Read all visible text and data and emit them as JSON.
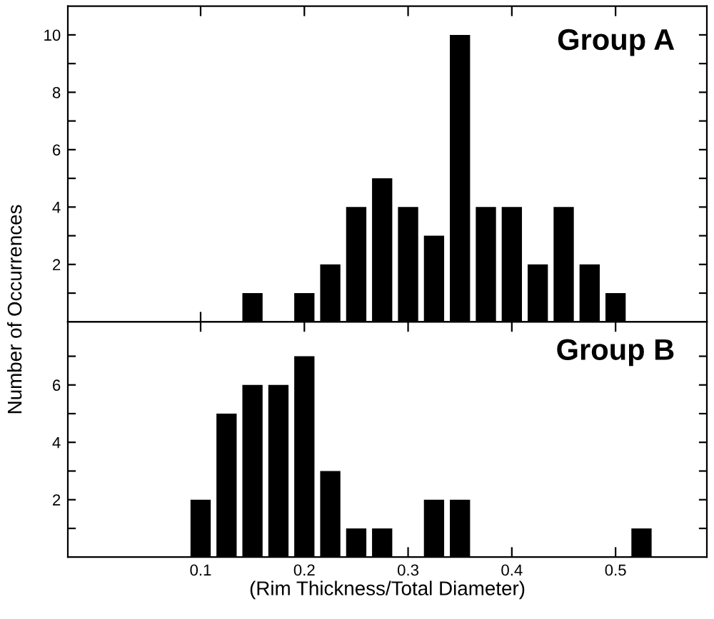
{
  "chart_data": [
    {
      "type": "histogram",
      "ylabel": "Number of Occurrences",
      "annotations": [
        "Group A"
      ],
      "bins": [
        0.1375,
        0.1625,
        0.1875,
        0.2125,
        0.2375,
        0.2625,
        0.2875,
        0.3125,
        0.3375,
        0.3625,
        0.3875,
        0.4125,
        0.4375,
        0.4625,
        0.4875,
        0.5125
      ],
      "values": [
        1,
        0,
        1,
        2,
        4,
        5,
        4,
        3,
        10,
        4,
        4,
        2,
        4,
        2,
        1
      ],
      "color": "#000000",
      "xlim": [
        -0.028,
        0.588
      ],
      "xticks": [
        0.1,
        0.2,
        0.3,
        0.4,
        0.5
      ],
      "ylim": [
        0,
        11
      ],
      "yticks": [
        {
          "value": 1,
          "label": null
        },
        2,
        {
          "value": 3,
          "label": null
        },
        4,
        {
          "value": 5,
          "label": null
        },
        6,
        {
          "value": 7,
          "label": null
        },
        8,
        {
          "value": 9,
          "label": null
        },
        10
      ],
      "tick_labels": "y",
      "grid": false,
      "legend": false
    },
    {
      "type": "histogram",
      "xlabel": "(Rim Thickness/Total Diameter)",
      "annotations": [
        "Group B"
      ],
      "bins": [
        0.0875,
        0.1125,
        0.1375,
        0.1625,
        0.1875,
        0.2125,
        0.2375,
        0.2625,
        0.2875,
        0.3125,
        0.3375,
        0.3625,
        0.3875,
        0.4125,
        0.4375,
        0.4625,
        0.4875,
        0.5125,
        0.5375
      ],
      "values": [
        2,
        5,
        6,
        6,
        7,
        3,
        1,
        1,
        0,
        2,
        2,
        0,
        0,
        0,
        0,
        0,
        0,
        1
      ],
      "color": "#000000",
      "xlim": [
        -0.028,
        0.588
      ],
      "xticks": [
        0.1,
        0.2,
        0.3,
        0.4,
        0.5
      ],
      "ylim": [
        0,
        8.2
      ],
      "yticks": [
        {
          "value": 1,
          "label": null
        },
        2,
        {
          "value": 3,
          "label": null
        },
        4,
        {
          "value": 5,
          "label": null
        },
        6,
        {
          "value": 7,
          "label": null
        }
      ],
      "grid": false,
      "legend": false
    }
  ]
}
